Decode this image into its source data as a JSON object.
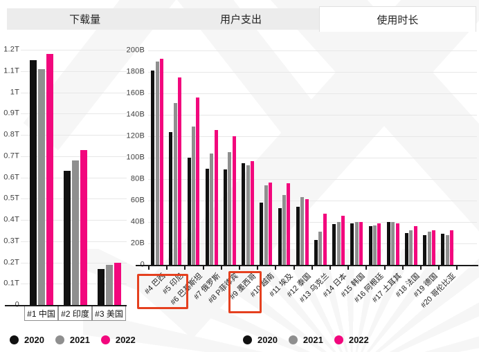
{
  "tabs": {
    "items": [
      {
        "label": "下载量",
        "active": false
      },
      {
        "label": "用户支出",
        "active": false
      },
      {
        "label": "使用时长",
        "active": true
      }
    ]
  },
  "legend": {
    "years": [
      {
        "label": "2020",
        "color": "#111111"
      },
      {
        "label": "2021",
        "color": "#8f8f8f"
      },
      {
        "label": "2022",
        "color": "#f2077d"
      }
    ]
  },
  "chart_data": [
    {
      "id": "usage-time-top3",
      "type": "bar",
      "title": "",
      "categories": [
        "#1 中国",
        "#2 印度",
        "#3 美国"
      ],
      "series": [
        {
          "name": "2020",
          "values": [
            1.15,
            0.63,
            0.17
          ]
        },
        {
          "name": "2021",
          "values": [
            1.11,
            0.68,
            0.19
          ]
        },
        {
          "name": "2022",
          "values": [
            1.18,
            0.73,
            0.2
          ]
        }
      ],
      "ylim": [
        0,
        1.2
      ],
      "ytick_labels": [
        "0",
        "0.1T",
        "0.2T",
        "0.3T",
        "0.4T",
        "0.5T",
        "0.6T",
        "0.7T",
        "0.8T",
        "0.9T",
        "1T",
        "1.1T",
        "1.2T"
      ],
      "legend_position": "bottom",
      "grid": true
    },
    {
      "id": "usage-time-rank4-20",
      "type": "bar",
      "title": "",
      "categories": [
        "#4 巴西",
        "#5 印尼",
        "#6 巴基斯坦",
        "#7 俄罗斯",
        "#8 P菲律宾",
        "#9 墨西哥",
        "#10 越南",
        "#11 埃及",
        "#12 泰国",
        "#13 乌克兰",
        "#14 日本",
        "#15 韩国",
        "#16 阿根廷",
        "#17 土耳其",
        "#18 法国",
        "#19 德国",
        "#20 哥伦比亚"
      ],
      "series": [
        {
          "name": "2020",
          "values": [
            181,
            124,
            100,
            90,
            89,
            95,
            58,
            53,
            54,
            23,
            38,
            39,
            36,
            40,
            30,
            28,
            29
          ]
        },
        {
          "name": "2021",
          "values": [
            190,
            151,
            129,
            104,
            105,
            93,
            74,
            65,
            63,
            31,
            40,
            40,
            37,
            40,
            32,
            31,
            28
          ]
        },
        {
          "name": "2022",
          "values": [
            192,
            175,
            156,
            126,
            120,
            97,
            77,
            76,
            61,
            48,
            46,
            40,
            39,
            39,
            36,
            32,
            32
          ]
        }
      ],
      "ylim": [
        0,
        200
      ],
      "ytick_labels": [
        "0",
        "20B",
        "40B",
        "60B",
        "80B",
        "100B",
        "120B",
        "140B",
        "160B",
        "180B",
        "200B"
      ],
      "highlight_boxes": [
        {
          "covers": [
            "#4 巴西",
            "#5 印尼"
          ]
        },
        {
          "covers": [
            "#9 墨西哥"
          ]
        }
      ],
      "highlight_color": "#e5401f",
      "legend_position": "bottom",
      "grid": true
    }
  ]
}
